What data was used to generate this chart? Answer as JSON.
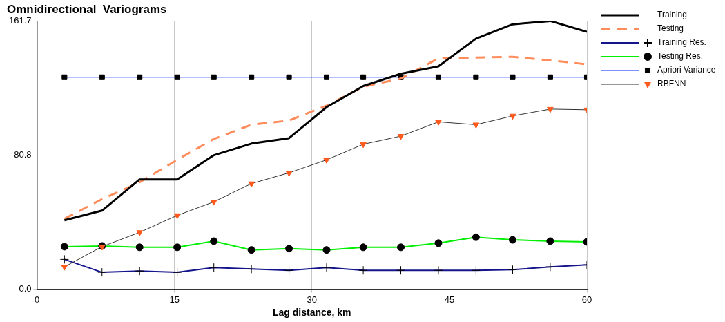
{
  "chart_data": {
    "type": "line",
    "title": "Omnidirectional  Variograms",
    "xlabel": "Lag distance, km",
    "x": [
      3.0,
      7.1,
      11.2,
      15.3,
      19.3,
      23.4,
      27.5,
      31.6,
      35.6,
      39.7,
      43.8,
      47.9,
      51.9,
      56.0,
      60.0
    ],
    "xlim": [
      0,
      60
    ],
    "xticks": [
      0,
      15,
      30,
      45,
      60
    ],
    "ylim": [
      0,
      161.7
    ],
    "yticks": [
      {
        "value": 0,
        "label": "0.0"
      },
      {
        "value": 40.4,
        "label": null
      },
      80.8,
      {
        "value": 121.3,
        "label": null
      },
      161.7
    ],
    "grid": true,
    "legend": "right",
    "series": [
      {
        "name": "Training",
        "color": "#000000",
        "marker": "none",
        "values": [
          41.6,
          47.4,
          66.2,
          66.2,
          80.8,
          87.8,
          91.1,
          109.8,
          122.5,
          129.9,
          134.4,
          151.1,
          159.7,
          161.7,
          155.2
        ]
      },
      {
        "name": "Testing",
        "color": "#ff8c5a",
        "marker": "none",
        "line_style": "dashed",
        "values": [
          42.5,
          54.3,
          64.5,
          78.0,
          90.6,
          99.2,
          101.7,
          110.7,
          122.1,
          127.0,
          139.2,
          139.7,
          140.1,
          138.0,
          135.6
        ]
      },
      {
        "name": "Training Res.",
        "color": "#14148c",
        "marker": "cross",
        "values": [
          18.0,
          10.2,
          11.0,
          10.2,
          13.1,
          12.2,
          11.4,
          13.1,
          11.4,
          11.4,
          11.4,
          11.4,
          11.8,
          13.5,
          14.7
        ]
      },
      {
        "name": "Testing Res.",
        "color": "#00ee00",
        "marker": "circle",
        "values": [
          25.7,
          26.1,
          25.3,
          25.3,
          29.0,
          23.7,
          24.5,
          23.7,
          25.3,
          25.3,
          27.8,
          31.4,
          29.8,
          29.0,
          28.6
        ]
      },
      {
        "name": "Apriori Variance",
        "color": "#0022ff",
        "marker": "square",
        "values": [
          127.8,
          127.8,
          127.8,
          127.8,
          127.8,
          127.8,
          127.8,
          127.8,
          127.8,
          127.8,
          127.8,
          127.8,
          127.8,
          127.8,
          127.8
        ]
      },
      {
        "name": "RBFNN",
        "color": "#ff5a1e",
        "marker": "triangle",
        "values": [
          13.5,
          25.7,
          34.3,
          44.5,
          52.7,
          63.7,
          70.2,
          78.0,
          87.4,
          92.3,
          100.9,
          99.2,
          104.5,
          108.6,
          108.2
        ]
      }
    ]
  }
}
